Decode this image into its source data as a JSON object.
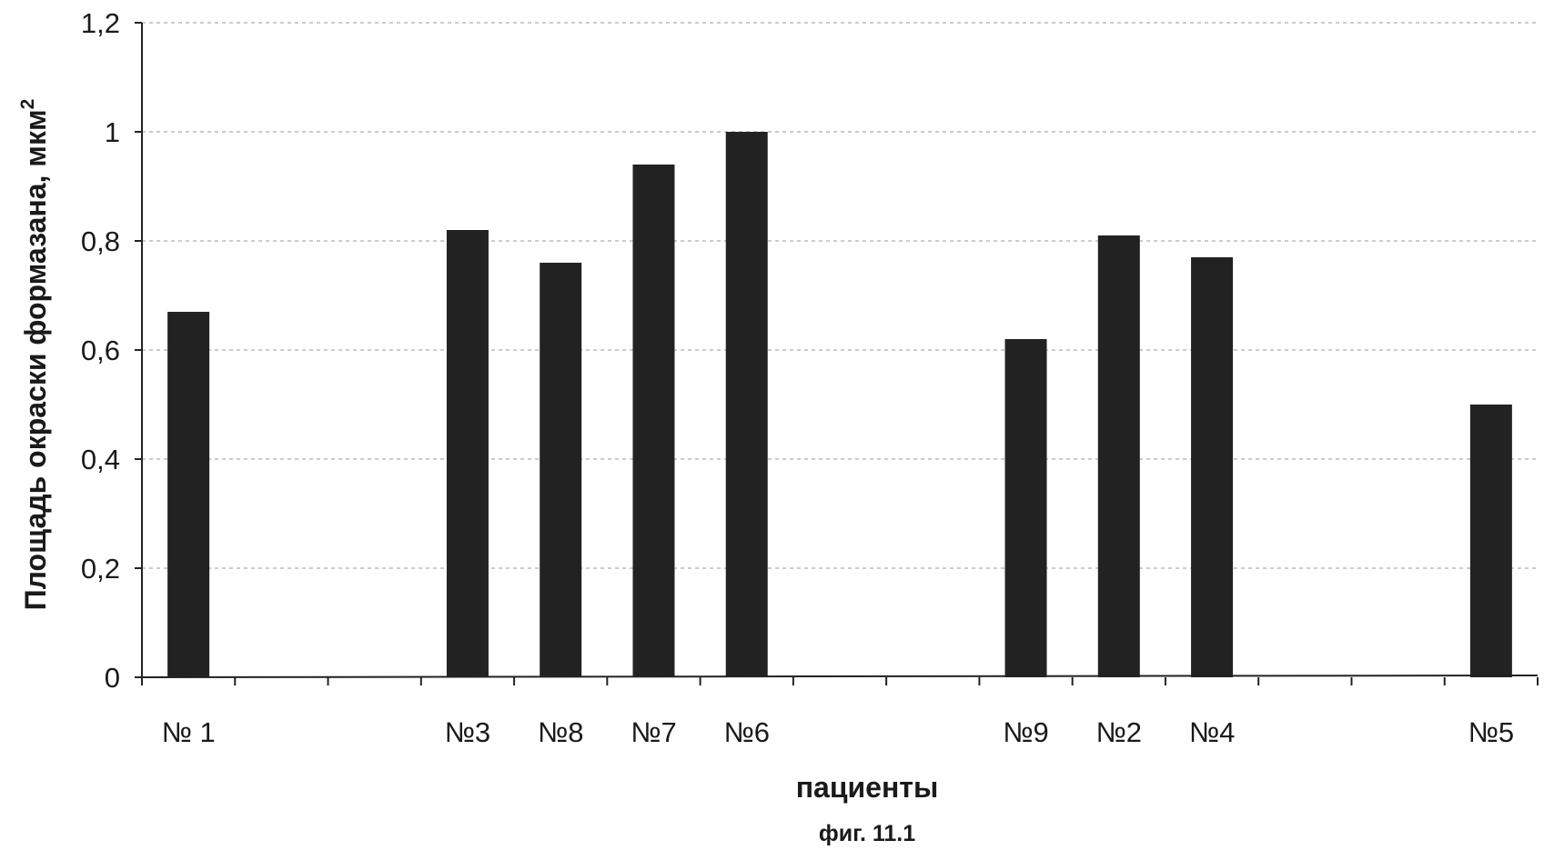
{
  "chart_data": {
    "type": "bar",
    "categories": [
      "№ 1",
      "",
      "",
      "№3",
      "№8",
      "№7",
      "№6",
      "",
      "",
      "№9",
      "№2",
      "№4",
      "",
      "",
      "№5"
    ],
    "values": [
      0.67,
      null,
      null,
      0.82,
      0.76,
      0.94,
      1.0,
      null,
      null,
      0.62,
      0.81,
      0.77,
      null,
      null,
      0.5
    ],
    "ylabel": "Площадь окраски формазана, мкм",
    "ylabel_sup": "2",
    "xlabel": "пациенты",
    "yticks": [
      "0",
      "0,2",
      "0,4",
      "0,6",
      "0,8",
      "1",
      "1,2"
    ],
    "ylim": [
      0,
      1.2
    ],
    "grid": "horizontal dashed",
    "bar_color": "#222222"
  },
  "caption": "фиг. 11.1"
}
